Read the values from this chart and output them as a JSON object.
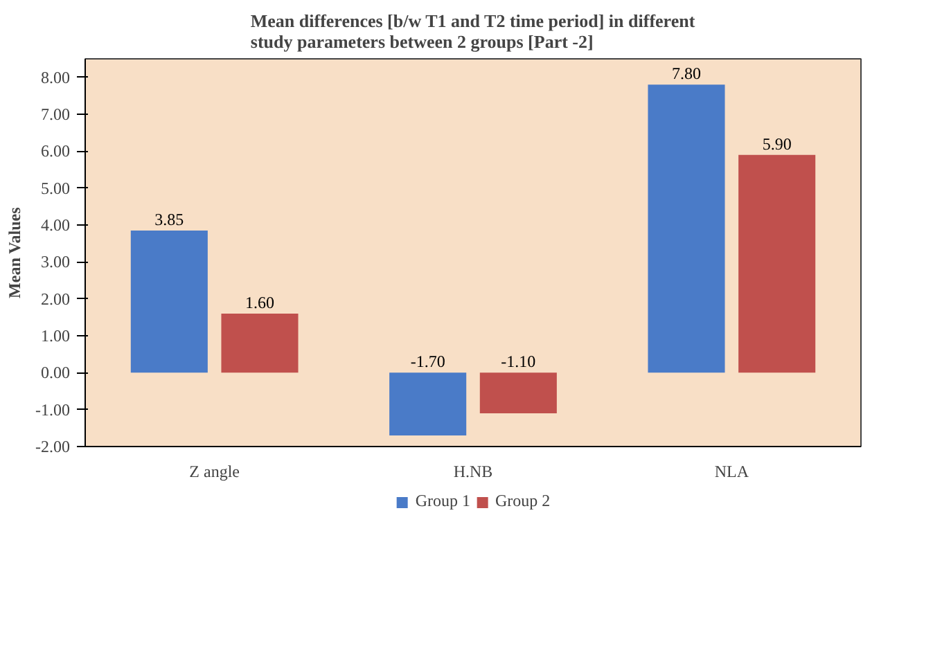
{
  "chart_data": {
    "type": "bar",
    "title": "Mean differences [b/w T1 and T2 time period] in different study parameters  between 2 groups [Part -2]",
    "ylabel": "Mean Values",
    "categories": [
      "Z angle",
      "H.NB",
      "NLA"
    ],
    "series": [
      {
        "name": "Group 1",
        "color": "#4a7bc8",
        "values": [
          3.85,
          -1.7,
          7.8
        ]
      },
      {
        "name": "Group 2",
        "color": "#c0504d",
        "values": [
          1.6,
          -1.1,
          5.9
        ]
      }
    ],
    "ylim": [
      -2,
      8.5
    ],
    "yticks": [
      {
        "value": -2,
        "label": "-2.00"
      },
      {
        "value": -1,
        "label": "-1.00"
      },
      {
        "value": 0,
        "label": "0.00"
      },
      {
        "value": 1,
        "label": "1.00"
      },
      {
        "value": 2,
        "label": "2.00"
      },
      {
        "value": 3,
        "label": "3.00"
      },
      {
        "value": 4,
        "label": "4.00"
      },
      {
        "value": 5,
        "label": "5.00"
      },
      {
        "value": 6,
        "label": "6.00"
      },
      {
        "value": 7,
        "label": "7.00"
      },
      {
        "value": 8,
        "label": "8.00"
      }
    ],
    "value_labels": [
      [
        "3.85",
        "-1.70",
        "7.80"
      ],
      [
        "1.60",
        "-1.10",
        "5.90"
      ]
    ],
    "grid": false,
    "legend": "bottom"
  }
}
